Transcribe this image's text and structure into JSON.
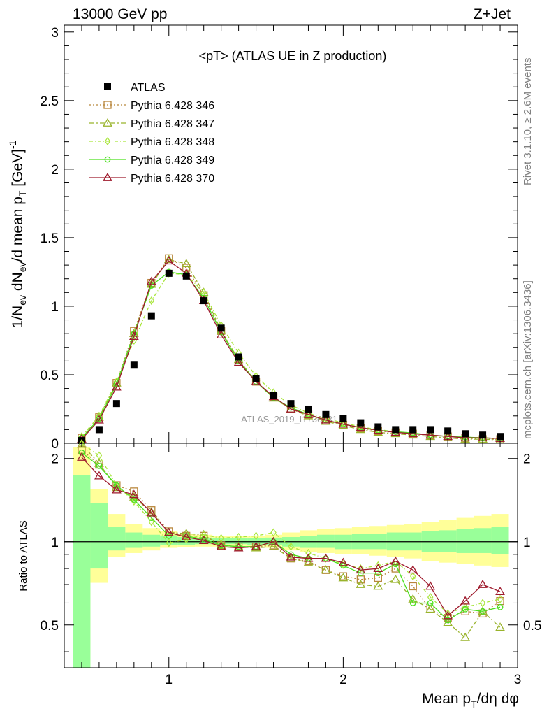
{
  "header": {
    "left": "13000 GeV pp",
    "right": "Z+Jet"
  },
  "side_labels": {
    "rivet": "Rivet 3.1.10, ≥ 2.6M events",
    "mcplots": "mcplots.cern.ch [arXiv:1306.3436]"
  },
  "chart_data": {
    "type": "line",
    "title": "<pT> (ATLAS UE in Z production)",
    "watermark": "ATLAS_2019_I1736531",
    "xlabel": "Mean p_T/dη dφ",
    "ylabel": "1/N_ev dN_ev/d mean p_T [GeV]^-1",
    "ratio_ylabel": "Ratio to ATLAS",
    "xlim": [
      0.4,
      3.0
    ],
    "ylim": [
      0,
      3.05
    ],
    "ratio_ylim": [
      0.35,
      2.27
    ],
    "main_ticks_y": [
      "0",
      "0.5",
      "1",
      "1.5",
      "2",
      "2.5",
      "3"
    ],
    "ratio_ticks_y": [
      "0.5",
      "1",
      "2"
    ],
    "ticks_x": [
      "1",
      "2",
      "3"
    ],
    "legend_position": "top-left",
    "x": [
      0.5,
      0.6,
      0.7,
      0.8,
      0.9,
      1.0,
      1.1,
      1.2,
      1.3,
      1.4,
      1.5,
      1.6,
      1.7,
      1.8,
      1.9,
      2.0,
      2.1,
      2.2,
      2.3,
      2.4,
      2.5,
      2.6,
      2.7,
      2.8,
      2.9
    ],
    "data": {
      "name": "ATLAS",
      "color": "#000000",
      "values": [
        0.02,
        0.1,
        0.29,
        0.57,
        0.93,
        1.24,
        1.22,
        1.04,
        0.84,
        0.63,
        0.47,
        0.35,
        0.29,
        0.25,
        0.21,
        0.18,
        0.15,
        0.12,
        0.1,
        0.1,
        0.1,
        0.09,
        0.07,
        0.06,
        0.05
      ]
    },
    "bands": {
      "outer_lo": [
        0.35,
        0.71,
        0.88,
        0.91,
        0.93,
        0.95,
        0.955,
        0.96,
        0.96,
        0.965,
        0.96,
        0.95,
        0.93,
        0.92,
        0.91,
        0.9,
        0.9,
        0.89,
        0.88,
        0.87,
        0.85,
        0.84,
        0.83,
        0.82,
        0.81
      ],
      "outer_hi": [
        2.2,
        1.55,
        1.26,
        1.16,
        1.12,
        1.09,
        1.07,
        1.06,
        1.05,
        1.05,
        1.05,
        1.06,
        1.08,
        1.1,
        1.11,
        1.12,
        1.13,
        1.14,
        1.15,
        1.16,
        1.18,
        1.2,
        1.22,
        1.24,
        1.26
      ],
      "inner_lo": [
        0.35,
        0.8,
        0.93,
        0.95,
        0.96,
        0.97,
        0.975,
        0.98,
        0.98,
        0.98,
        0.97,
        0.97,
        0.96,
        0.95,
        0.95,
        0.94,
        0.94,
        0.94,
        0.93,
        0.93,
        0.92,
        0.92,
        0.91,
        0.91,
        0.9
      ],
      "inner_hi": [
        1.74,
        1.38,
        1.13,
        1.08,
        1.06,
        1.05,
        1.04,
        1.035,
        1.03,
        1.03,
        1.03,
        1.035,
        1.04,
        1.05,
        1.06,
        1.06,
        1.07,
        1.07,
        1.08,
        1.08,
        1.09,
        1.1,
        1.11,
        1.12,
        1.13
      ],
      "outer_color": "#ffff99",
      "inner_color": "#99ff99"
    },
    "series": [
      {
        "name": "Pythia 6.428 346",
        "color": "#b8863b",
        "marker": "square",
        "dash": "2,3",
        "values": [
          0.04,
          0.19,
          0.44,
          0.82,
          1.17,
          1.35,
          1.28,
          1.08,
          0.82,
          0.61,
          0.45,
          0.34,
          0.25,
          0.21,
          0.165,
          0.135,
          0.11,
          0.09,
          0.08,
          0.07,
          0.06,
          0.05,
          0.04,
          0.03,
          0.03
        ],
        "ratio": [
          2.15,
          1.9,
          1.6,
          1.52,
          1.3,
          1.09,
          1.05,
          1.05,
          0.97,
          0.96,
          0.96,
          0.97,
          0.87,
          0.85,
          0.79,
          0.75,
          0.73,
          0.74,
          0.8,
          0.69,
          0.57,
          0.53,
          0.56,
          0.55,
          0.61
        ]
      },
      {
        "name": "Pythia 6.428 347",
        "color": "#99b32b",
        "marker": "triangle",
        "dash": "7,3,2,3",
        "values": [
          0.04,
          0.19,
          0.44,
          0.8,
          1.16,
          1.34,
          1.31,
          1.1,
          0.82,
          0.61,
          0.45,
          0.33,
          0.25,
          0.2,
          0.16,
          0.13,
          0.1,
          0.08,
          0.07,
          0.06,
          0.05,
          0.04,
          0.03,
          0.03,
          0.025
        ],
        "ratio": [
          2.25,
          1.92,
          1.57,
          1.45,
          1.28,
          1.08,
          1.07,
          1.06,
          0.97,
          0.96,
          0.95,
          0.96,
          0.87,
          0.84,
          0.79,
          0.74,
          0.7,
          0.69,
          0.73,
          0.62,
          0.57,
          0.51,
          0.45,
          0.56,
          0.49
        ]
      },
      {
        "name": "Pythia 6.428 348",
        "color": "#a9e63c",
        "marker": "diamond",
        "dash": "5,3,1,3",
        "values": [
          0.05,
          0.2,
          0.45,
          0.75,
          1.04,
          1.24,
          1.23,
          1.1,
          0.86,
          0.66,
          0.49,
          0.37,
          0.28,
          0.22,
          0.18,
          0.15,
          0.12,
          0.1,
          0.085,
          0.07,
          0.06,
          0.05,
          0.045,
          0.04,
          0.035
        ],
        "ratio": [
          2.28,
          2.05,
          1.6,
          1.4,
          1.18,
          0.99,
          1.02,
          1.06,
          1.03,
          1.04,
          1.05,
          1.08,
          0.96,
          0.91,
          0.87,
          0.83,
          0.8,
          0.82,
          0.85,
          0.75,
          0.63,
          0.55,
          0.58,
          0.6,
          0.62
        ]
      },
      {
        "name": "Pythia 6.428 349",
        "color": "#4ce01f",
        "marker": "circle",
        "dash": "",
        "values": [
          0.04,
          0.18,
          0.43,
          0.8,
          1.15,
          1.25,
          1.23,
          1.06,
          0.81,
          0.6,
          0.45,
          0.33,
          0.26,
          0.21,
          0.17,
          0.14,
          0.115,
          0.095,
          0.085,
          0.075,
          0.06,
          0.05,
          0.045,
          0.04,
          0.035
        ],
        "ratio": [
          2.1,
          1.88,
          1.6,
          1.42,
          1.22,
          1.05,
          1.05,
          1.02,
          0.97,
          0.96,
          0.96,
          1.0,
          0.9,
          0.87,
          0.87,
          0.82,
          0.77,
          0.77,
          0.83,
          0.6,
          0.6,
          0.52,
          0.57,
          0.56,
          0.58
        ]
      },
      {
        "name": "Pythia 6.428 370",
        "color": "#9e1a2c",
        "marker": "triangle",
        "dash": "",
        "values": [
          0.03,
          0.17,
          0.41,
          0.78,
          1.18,
          1.33,
          1.24,
          1.04,
          0.79,
          0.59,
          0.45,
          0.34,
          0.25,
          0.21,
          0.17,
          0.14,
          0.115,
          0.095,
          0.08,
          0.07,
          0.06,
          0.05,
          0.04,
          0.04,
          0.035
        ],
        "ratio": [
          2.02,
          1.73,
          1.54,
          1.48,
          1.27,
          1.08,
          1.04,
          1.01,
          0.96,
          0.95,
          0.96,
          1.0,
          0.88,
          0.87,
          0.87,
          0.84,
          0.79,
          0.8,
          0.85,
          0.79,
          0.69,
          0.54,
          0.61,
          0.7,
          0.66
        ]
      }
    ]
  }
}
